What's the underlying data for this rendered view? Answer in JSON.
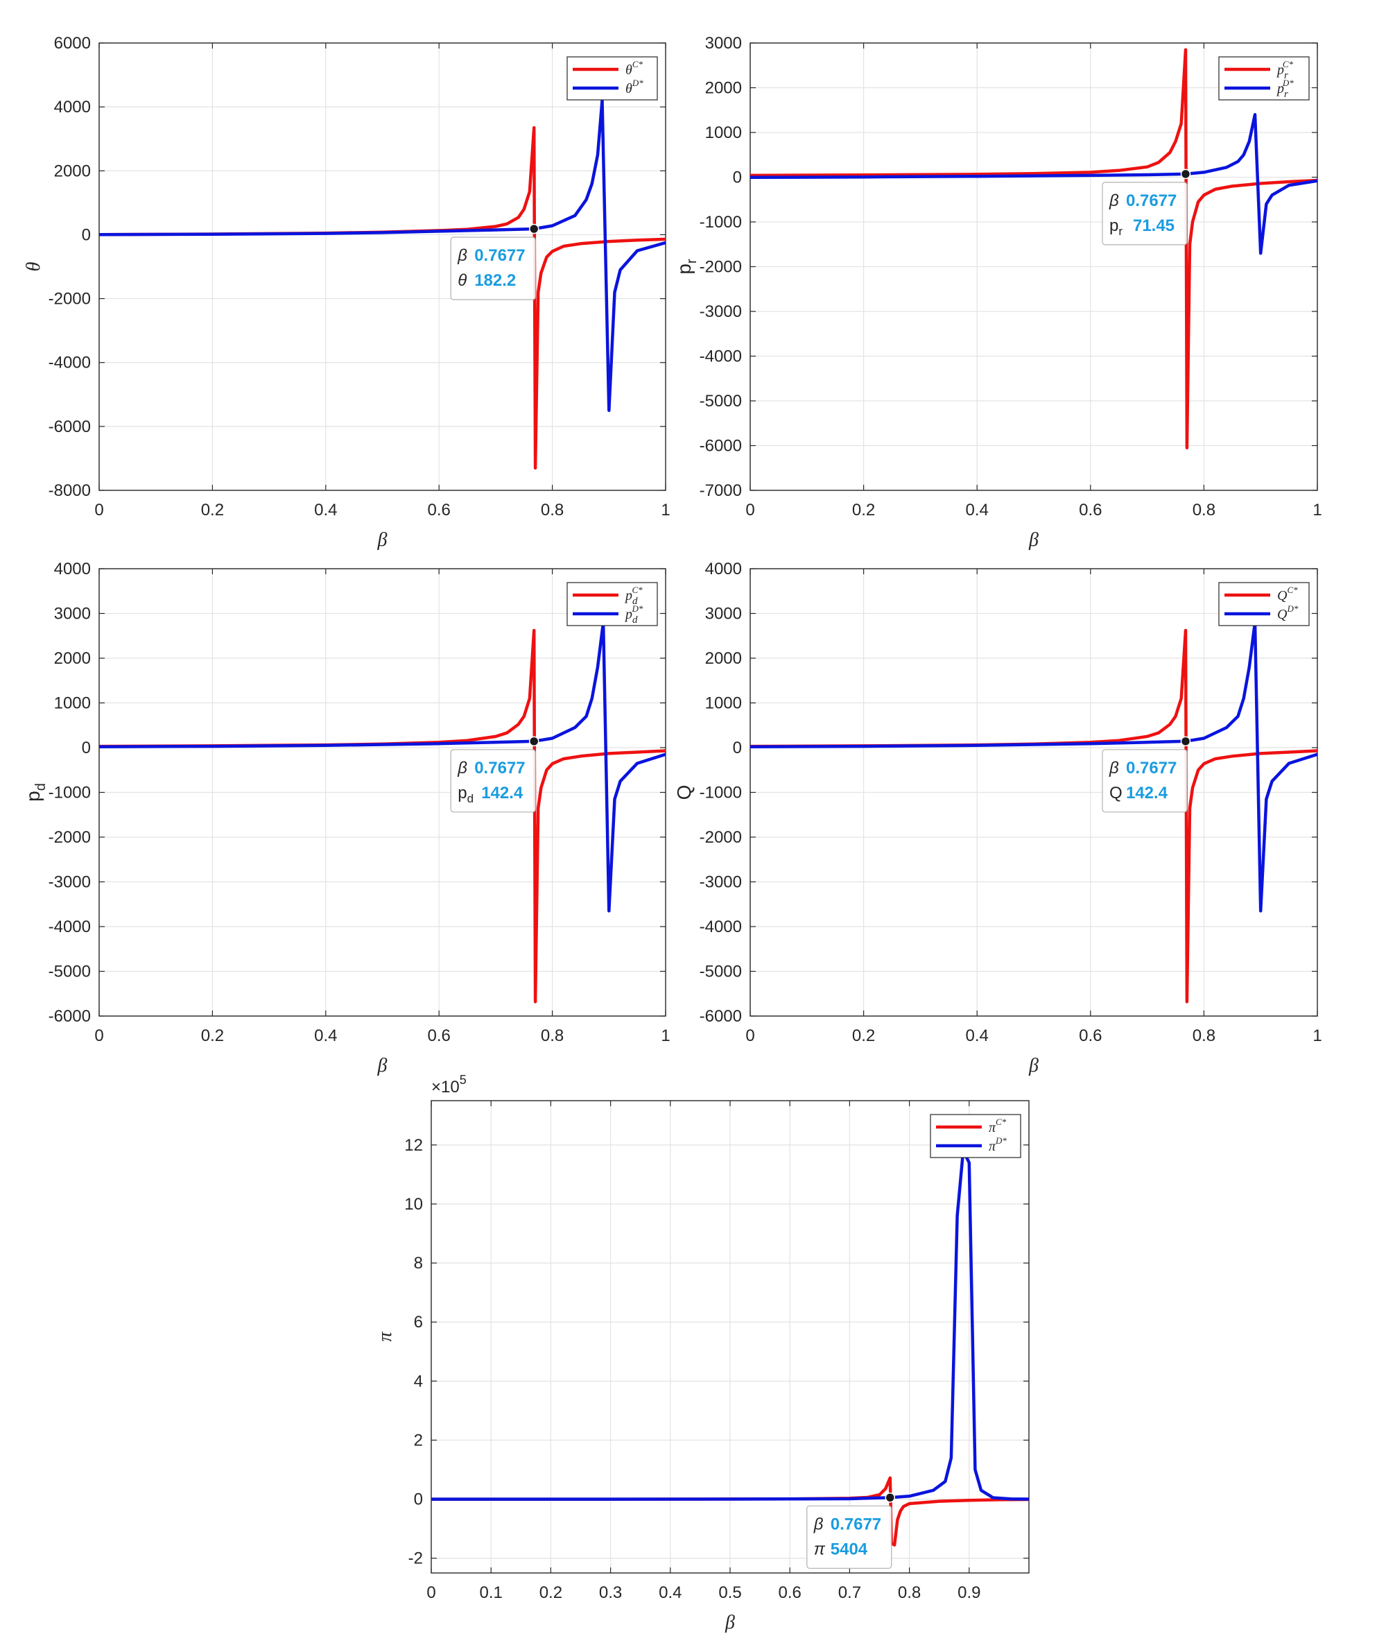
{
  "chart_data": [
    {
      "type": "line",
      "xlabel": "β",
      "ylabel": "θ",
      "xlim": [
        0,
        1
      ],
      "ylim": [
        -8000,
        6000
      ],
      "xticks": [
        "0",
        "0.2",
        "0.4",
        "0.6",
        "0.8",
        "1"
      ],
      "yticks": [
        "-8000",
        "-6000",
        "-4000",
        "-2000",
        "0",
        "2000",
        "4000",
        "6000"
      ],
      "grid": true,
      "legend_position": "top-right",
      "series": [
        {
          "name": "θ^{C*}",
          "legend_base": "θ",
          "legend_sub": "",
          "legend_sup": "C*",
          "color": "#ee1111",
          "x": [
            0,
            0.2,
            0.4,
            0.5,
            0.6,
            0.65,
            0.7,
            0.72,
            0.74,
            0.75,
            0.76,
            0.7677,
            0.77,
            0.775,
            0.78,
            0.79,
            0.8,
            0.82,
            0.85,
            0.9,
            0.95,
            1
          ],
          "y": [
            5,
            20,
            50,
            80,
            130,
            170,
            260,
            340,
            540,
            800,
            1350,
            3350,
            -7300,
            -1800,
            -1200,
            -700,
            -520,
            -360,
            -280,
            -210,
            -170,
            -140
          ]
        },
        {
          "name": "θ^{D*}",
          "legend_base": "θ",
          "legend_sub": "",
          "legend_sup": "D*",
          "color": "#0a14dd",
          "x": [
            0,
            0.2,
            0.4,
            0.5,
            0.6,
            0.7,
            0.7677,
            0.8,
            0.84,
            0.86,
            0.87,
            0.88,
            0.888,
            0.9,
            0.91,
            0.92,
            0.95,
            1
          ],
          "y": [
            3,
            15,
            40,
            65,
            110,
            150,
            182,
            280,
            600,
            1100,
            1600,
            2500,
            4200,
            -5500,
            -1800,
            -1100,
            -500,
            -250
          ]
        }
      ],
      "datatip": {
        "x_label": "β",
        "x_value": "0.7677",
        "y_label": "θ",
        "y_label_sub": "",
        "y_value": "182.2",
        "x": 0.7677,
        "y": 182.2
      }
    },
    {
      "type": "line",
      "xlabel": "β",
      "ylabel": "p",
      "ylabel_sub": "r",
      "xlim": [
        0,
        1
      ],
      "ylim": [
        -7000,
        3000
      ],
      "xticks": [
        "0",
        "0.2",
        "0.4",
        "0.6",
        "0.8",
        "1"
      ],
      "yticks": [
        "-7000",
        "-6000",
        "-5000",
        "-4000",
        "-3000",
        "-2000",
        "-1000",
        "0",
        "1000",
        "2000",
        "3000"
      ],
      "grid": true,
      "legend_position": "top-right",
      "series": [
        {
          "name": "p_r^{C*}",
          "legend_base": "p",
          "legend_sub": "r",
          "legend_sup": "C*",
          "color": "#ee1111",
          "x": [
            0,
            0.2,
            0.4,
            0.5,
            0.6,
            0.65,
            0.7,
            0.72,
            0.74,
            0.75,
            0.76,
            0.7677,
            0.77,
            0.775,
            0.78,
            0.79,
            0.8,
            0.82,
            0.85,
            0.9,
            0.95,
            1
          ],
          "y": [
            40,
            50,
            65,
            80,
            110,
            150,
            230,
            330,
            550,
            800,
            1200,
            2850,
            -6050,
            -1500,
            -1000,
            -550,
            -400,
            -270,
            -200,
            -140,
            -100,
            -70
          ]
        },
        {
          "name": "p_r^{D*}",
          "legend_base": "p",
          "legend_sub": "r",
          "legend_sup": "D*",
          "color": "#0a14dd",
          "x": [
            0,
            0.2,
            0.4,
            0.6,
            0.7,
            0.7677,
            0.8,
            0.84,
            0.86,
            0.87,
            0.88,
            0.89,
            0.9,
            0.91,
            0.92,
            0.95,
            1
          ],
          "y": [
            -5,
            5,
            20,
            40,
            55,
            71.45,
            110,
            220,
            350,
            500,
            800,
            1400,
            -1700,
            -600,
            -400,
            -180,
            -80
          ]
        }
      ],
      "datatip": {
        "x_label": "β",
        "x_value": "0.7677",
        "y_label": "p",
        "y_label_sub": "r",
        "y_value": "71.45",
        "x": 0.7677,
        "y": 71.45
      }
    },
    {
      "type": "line",
      "xlabel": "β",
      "ylabel": "p",
      "ylabel_sub": "d",
      "xlim": [
        0,
        1
      ],
      "ylim": [
        -6000,
        4000
      ],
      "xticks": [
        "0",
        "0.2",
        "0.4",
        "0.6",
        "0.8",
        "1"
      ],
      "yticks": [
        "-6000",
        "-5000",
        "-4000",
        "-3000",
        "-2000",
        "-1000",
        "0",
        "1000",
        "2000",
        "3000",
        "4000"
      ],
      "grid": true,
      "legend_position": "top-right",
      "series": [
        {
          "name": "p_d^{C*}",
          "legend_base": "p",
          "legend_sub": "d",
          "legend_sup": "C*",
          "color": "#ee1111",
          "x": [
            0,
            0.2,
            0.4,
            0.5,
            0.6,
            0.65,
            0.7,
            0.72,
            0.74,
            0.75,
            0.76,
            0.7677,
            0.77,
            0.775,
            0.78,
            0.79,
            0.8,
            0.82,
            0.85,
            0.9,
            0.95,
            1
          ],
          "y": [
            30,
            40,
            60,
            80,
            120,
            160,
            250,
            330,
            520,
            700,
            1100,
            2620,
            -5680,
            -1350,
            -900,
            -500,
            -360,
            -250,
            -190,
            -130,
            -100,
            -70
          ]
        },
        {
          "name": "p_d^{D*}",
          "legend_base": "p",
          "legend_sub": "d",
          "legend_sup": "D*",
          "color": "#0a14dd",
          "x": [
            0,
            0.2,
            0.4,
            0.6,
            0.7,
            0.7677,
            0.8,
            0.84,
            0.86,
            0.87,
            0.88,
            0.89,
            0.9,
            0.91,
            0.92,
            0.95,
            1
          ],
          "y": [
            20,
            30,
            50,
            90,
            120,
            142.4,
            210,
            450,
            700,
            1100,
            1800,
            2800,
            -3650,
            -1150,
            -750,
            -350,
            -150
          ]
        }
      ],
      "datatip": {
        "x_label": "β",
        "x_value": "0.7677",
        "y_label": "p",
        "y_label_sub": "d",
        "y_value": "142.4",
        "x": 0.7677,
        "y": 142.4
      }
    },
    {
      "type": "line",
      "xlabel": "β",
      "ylabel": "Q",
      "xlim": [
        0,
        1
      ],
      "ylim": [
        -6000,
        4000
      ],
      "xticks": [
        "0",
        "0.2",
        "0.4",
        "0.6",
        "0.8",
        "1"
      ],
      "yticks": [
        "-6000",
        "-5000",
        "-4000",
        "-3000",
        "-2000",
        "-1000",
        "0",
        "1000",
        "2000",
        "3000",
        "4000"
      ],
      "grid": true,
      "legend_position": "top-right",
      "series": [
        {
          "name": "Q^{C*}",
          "legend_base": "Q",
          "legend_sub": "",
          "legend_sup": "C*",
          "color": "#ee1111",
          "x": [
            0,
            0.2,
            0.4,
            0.5,
            0.6,
            0.65,
            0.7,
            0.72,
            0.74,
            0.75,
            0.76,
            0.7677,
            0.77,
            0.775,
            0.78,
            0.79,
            0.8,
            0.82,
            0.85,
            0.9,
            0.95,
            1
          ],
          "y": [
            30,
            40,
            60,
            80,
            120,
            160,
            250,
            330,
            520,
            700,
            1100,
            2620,
            -5680,
            -1350,
            -900,
            -500,
            -360,
            -250,
            -190,
            -130,
            -100,
            -70
          ]
        },
        {
          "name": "Q^{D*}",
          "legend_base": "Q",
          "legend_sub": "",
          "legend_sup": "D*",
          "color": "#0a14dd",
          "x": [
            0,
            0.2,
            0.4,
            0.6,
            0.7,
            0.7677,
            0.8,
            0.84,
            0.86,
            0.87,
            0.88,
            0.89,
            0.9,
            0.91,
            0.92,
            0.95,
            1
          ],
          "y": [
            20,
            30,
            50,
            90,
            120,
            142.4,
            210,
            450,
            700,
            1100,
            1800,
            2800,
            -3650,
            -1150,
            -750,
            -350,
            -150
          ]
        }
      ],
      "datatip": {
        "x_label": "Q",
        "x_value": "0.7677",
        "y_label": "Q",
        "y_label_sub": "",
        "y_value": "142.4",
        "x": 0.7677,
        "y": 142.4,
        "x_label_fix": "β"
      }
    },
    {
      "type": "line",
      "xlabel": "β",
      "ylabel": "π",
      "xlim": [
        0,
        1
      ],
      "ylim": [
        -2.5,
        13.5
      ],
      "y_multiplier": "×10",
      "y_multiplier_exp": "5",
      "xticks": [
        "0",
        "0.1",
        "0.2",
        "0.3",
        "0.4",
        "0.5",
        "0.6",
        "0.7",
        "0.8",
        "0.9"
      ],
      "yticks": [
        "-2",
        "0",
        "2",
        "4",
        "6",
        "8",
        "10",
        "12"
      ],
      "grid": true,
      "legend_position": "top-right",
      "series": [
        {
          "name": "π^{C*}",
          "legend_base": "π",
          "legend_sub": "",
          "legend_sup": "C*",
          "color": "#ee1111",
          "x": [
            0,
            0.3,
            0.5,
            0.6,
            0.7,
            0.73,
            0.75,
            0.76,
            0.7677,
            0.77,
            0.775,
            0.78,
            0.785,
            0.79,
            0.8,
            0.85,
            0.9,
            0.95,
            1
          ],
          "y": [
            0,
            0.001,
            0.004,
            0.008,
            0.03,
            0.06,
            0.15,
            0.35,
            0.72,
            -1.5,
            -1.55,
            -0.7,
            -0.4,
            -0.25,
            -0.15,
            -0.07,
            -0.04,
            -0.02,
            -0.01
          ]
        },
        {
          "name": "π^{D*}",
          "legend_base": "π",
          "legend_sub": "",
          "legend_sup": "D*",
          "color": "#0a14dd",
          "x": [
            0,
            0.3,
            0.5,
            0.6,
            0.7,
            0.7677,
            0.8,
            0.84,
            0.86,
            0.87,
            0.88,
            0.89,
            0.9,
            0.91,
            0.92,
            0.94,
            0.97,
            1
          ],
          "y": [
            0,
            0.001,
            0.003,
            0.006,
            0.015,
            0.054,
            0.1,
            0.3,
            0.6,
            1.4,
            9.6,
            11.8,
            11.4,
            1.0,
            0.3,
            0.05,
            0.01,
            0.003
          ]
        }
      ],
      "datatip": {
        "x_label": "β",
        "x_value": "0.7677",
        "y_label": "π",
        "y_label_sub": "",
        "y_value": "5404",
        "x": 0.7677,
        "y": 0.054
      }
    }
  ]
}
